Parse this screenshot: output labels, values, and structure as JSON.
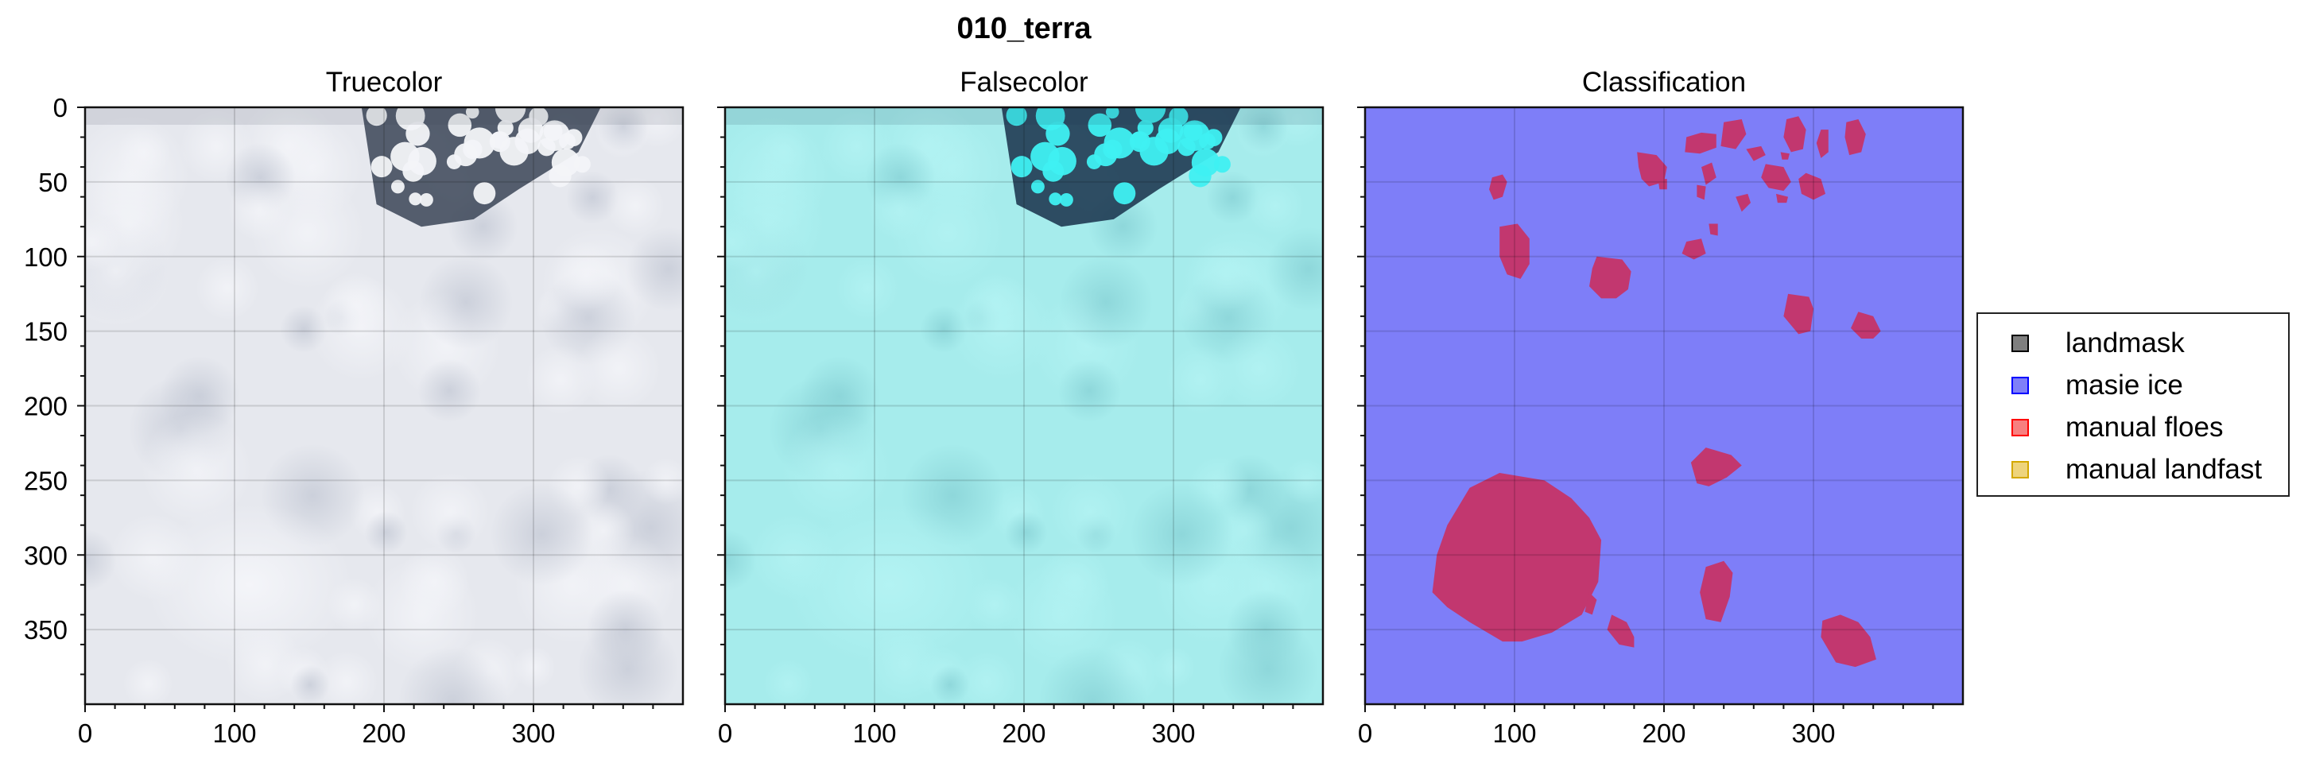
{
  "figure": {
    "suptitle": "010_terra"
  },
  "chart_data": [
    {
      "type": "image",
      "title": "Truecolor",
      "xlim": [
        0,
        400
      ],
      "ylim": [
        400,
        0
      ],
      "xticks": [
        0,
        100,
        200,
        300
      ],
      "yticks": [
        0,
        50,
        100,
        150,
        200,
        250,
        300,
        350
      ],
      "grid": true,
      "colors": {
        "background": "#e6e8ee",
        "dark_ice": "#3a4456",
        "floe_light": "#f3f4f8"
      }
    },
    {
      "type": "image",
      "title": "Falsecolor",
      "xlim": [
        0,
        400
      ],
      "ylim": [
        400,
        0
      ],
      "xticks": [
        0,
        100,
        200,
        300
      ],
      "yticks": [
        0,
        50,
        100,
        150,
        200,
        250,
        300,
        350
      ],
      "grid": true,
      "colors": {
        "background": "#a6ecec",
        "dark_ice": "#18304a",
        "bright": "#3ff0f2"
      }
    },
    {
      "type": "image",
      "title": "Classification",
      "xlim": [
        0,
        400
      ],
      "ylim": [
        400,
        0
      ],
      "xticks": [
        0,
        100,
        200,
        300
      ],
      "yticks": [
        0,
        50,
        100,
        150,
        200,
        250,
        300,
        350
      ],
      "grid": true,
      "colors": {
        "masie_ice": "#7e7ef8",
        "floe_overlap": "#c2376f"
      },
      "floes": [
        [
          [
            45,
            325
          ],
          [
            48,
            300
          ],
          [
            55,
            280
          ],
          [
            70,
            255
          ],
          [
            90,
            245
          ],
          [
            120,
            250
          ],
          [
            138,
            262
          ],
          [
            150,
            275
          ],
          [
            158,
            290
          ],
          [
            156,
            318
          ],
          [
            145,
            340
          ],
          [
            125,
            352
          ],
          [
            105,
            358
          ],
          [
            92,
            358
          ],
          [
            70,
            345
          ],
          [
            55,
            335
          ]
        ],
        [
          [
            228,
            228
          ],
          [
            245,
            233
          ],
          [
            252,
            240
          ],
          [
            242,
            248
          ],
          [
            230,
            254
          ],
          [
            222,
            252
          ],
          [
            218,
            238
          ]
        ],
        [
          [
            318,
            340
          ],
          [
            330,
            345
          ],
          [
            338,
            355
          ],
          [
            342,
            370
          ],
          [
            328,
            375
          ],
          [
            315,
            372
          ],
          [
            305,
            355
          ],
          [
            306,
            344
          ]
        ],
        [
          [
            228,
            308
          ],
          [
            240,
            304
          ],
          [
            246,
            312
          ],
          [
            244,
            328
          ],
          [
            238,
            345
          ],
          [
            228,
            343
          ],
          [
            224,
            325
          ]
        ],
        [
          [
            165,
            340
          ],
          [
            175,
            345
          ],
          [
            180,
            355
          ],
          [
            180,
            362
          ],
          [
            170,
            360
          ],
          [
            162,
            350
          ]
        ],
        [
          [
            150,
            325
          ],
          [
            155,
            330
          ],
          [
            152,
            340
          ],
          [
            147,
            338
          ]
        ],
        [
          [
            155,
            100
          ],
          [
            172,
            102
          ],
          [
            178,
            110
          ],
          [
            176,
            122
          ],
          [
            168,
            128
          ],
          [
            158,
            128
          ],
          [
            150,
            120
          ],
          [
            152,
            108
          ]
        ],
        [
          [
            90,
            80
          ],
          [
            102,
            78
          ],
          [
            110,
            88
          ],
          [
            110,
            105
          ],
          [
            104,
            115
          ],
          [
            95,
            112
          ],
          [
            90,
            100
          ]
        ],
        [
          [
            85,
            47
          ],
          [
            92,
            45
          ],
          [
            95,
            50
          ],
          [
            92,
            60
          ],
          [
            86,
            62
          ],
          [
            83,
            55
          ]
        ],
        [
          [
            283,
            125
          ],
          [
            297,
            127
          ],
          [
            300,
            135
          ],
          [
            298,
            150
          ],
          [
            290,
            152
          ],
          [
            280,
            140
          ]
        ],
        [
          [
            330,
            137
          ],
          [
            340,
            140
          ],
          [
            345,
            150
          ],
          [
            340,
            155
          ],
          [
            332,
            155
          ],
          [
            325,
            148
          ]
        ],
        [
          [
            182,
            30
          ],
          [
            195,
            32
          ],
          [
            202,
            40
          ],
          [
            200,
            50
          ],
          [
            190,
            53
          ],
          [
            185,
            48
          ],
          [
            183,
            40
          ]
        ],
        [
          [
            215,
            20
          ],
          [
            225,
            17
          ],
          [
            235,
            18
          ],
          [
            235,
            27
          ],
          [
            224,
            31
          ],
          [
            214,
            30
          ]
        ],
        [
          [
            240,
            10
          ],
          [
            252,
            8
          ],
          [
            255,
            18
          ],
          [
            248,
            28
          ],
          [
            238,
            26
          ]
        ],
        [
          [
            282,
            8
          ],
          [
            290,
            6
          ],
          [
            295,
            15
          ],
          [
            293,
            28
          ],
          [
            285,
            30
          ],
          [
            280,
            20
          ]
        ],
        [
          [
            305,
            15
          ],
          [
            310,
            15
          ],
          [
            310,
            30
          ],
          [
            305,
            34
          ],
          [
            302,
            24
          ]
        ],
        [
          [
            322,
            10
          ],
          [
            330,
            8
          ],
          [
            335,
            18
          ],
          [
            332,
            30
          ],
          [
            324,
            32
          ],
          [
            321,
            20
          ]
        ],
        [
          [
            268,
            38
          ],
          [
            280,
            40
          ],
          [
            285,
            50
          ],
          [
            280,
            56
          ],
          [
            270,
            54
          ],
          [
            265,
            47
          ]
        ],
        [
          [
            295,
            44
          ],
          [
            305,
            48
          ],
          [
            308,
            58
          ],
          [
            300,
            62
          ],
          [
            292,
            58
          ],
          [
            290,
            48
          ]
        ],
        [
          [
            255,
            28
          ],
          [
            265,
            26
          ],
          [
            268,
            32
          ],
          [
            260,
            36
          ]
        ],
        [
          [
            225,
            40
          ],
          [
            232,
            37
          ],
          [
            235,
            47
          ],
          [
            228,
            52
          ]
        ],
        [
          [
            222,
            52
          ],
          [
            228,
            53
          ],
          [
            227,
            62
          ],
          [
            222,
            60
          ]
        ],
        [
          [
            248,
            60
          ],
          [
            256,
            58
          ],
          [
            258,
            64
          ],
          [
            252,
            70
          ]
        ],
        [
          [
            275,
            58
          ],
          [
            283,
            60
          ],
          [
            282,
            64
          ],
          [
            276,
            64
          ]
        ],
        [
          [
            215,
            90
          ],
          [
            225,
            88
          ],
          [
            228,
            98
          ],
          [
            220,
            102
          ],
          [
            212,
            98
          ]
        ],
        [
          [
            230,
            78
          ],
          [
            236,
            78
          ],
          [
            236,
            86
          ],
          [
            231,
            85
          ]
        ],
        [
          [
            196,
            48
          ],
          [
            202,
            48
          ],
          [
            202,
            55
          ],
          [
            197,
            55
          ]
        ],
        [
          [
            278,
            30
          ],
          [
            284,
            31
          ],
          [
            283,
            35
          ],
          [
            279,
            35
          ]
        ]
      ]
    }
  ],
  "legend": {
    "placement": "right",
    "items": [
      {
        "label": "landmask",
        "color": "#000000",
        "fill": "#7f7f7f"
      },
      {
        "label": "masie ice",
        "color": "#0000ff",
        "fill": "#7f7ff8"
      },
      {
        "label": "manual floes",
        "color": "#ff0000",
        "fill": "#f78080"
      },
      {
        "label": "manual landfast",
        "color": "#d4a800",
        "fill": "#eed47c"
      }
    ]
  }
}
